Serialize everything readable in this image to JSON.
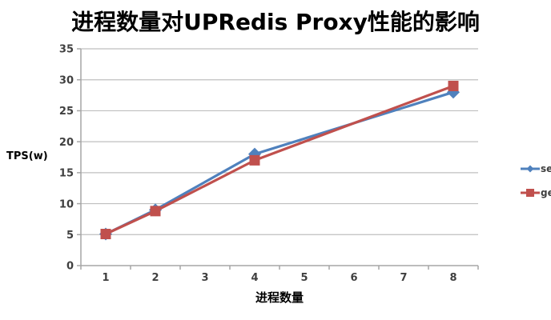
{
  "page": {
    "background": "#FFFFFF"
  },
  "chart_data": {
    "type": "line",
    "title": "进程数量对UPRedis Proxy性能的影响",
    "xlabel": "进程数量",
    "ylabel": "TPS(w)",
    "x_ticks": [
      1,
      2,
      3,
      4,
      5,
      6,
      7,
      8
    ],
    "xlim": [
      0.5,
      8.5
    ],
    "ylim": [
      0,
      35
    ],
    "y_tick_step": 5,
    "grid": true,
    "legend_position": "right",
    "colors": {
      "grid": "#BFBFBF",
      "axis": "#A6A6A6",
      "tick_text": "#3F3F3F",
      "title_text": "#000000",
      "set_series": "#4F81BD",
      "get_series": "#C0504D"
    },
    "series": [
      {
        "name": "set",
        "color": "#4F81BD",
        "marker": "diamond",
        "x": [
          1,
          2,
          4,
          8
        ],
        "values": [
          5.1,
          9,
          18,
          28
        ]
      },
      {
        "name": "get",
        "color": "#C0504D",
        "marker": "square",
        "x": [
          1,
          2,
          4,
          8
        ],
        "values": [
          5.1,
          8.8,
          17,
          29
        ]
      }
    ]
  }
}
